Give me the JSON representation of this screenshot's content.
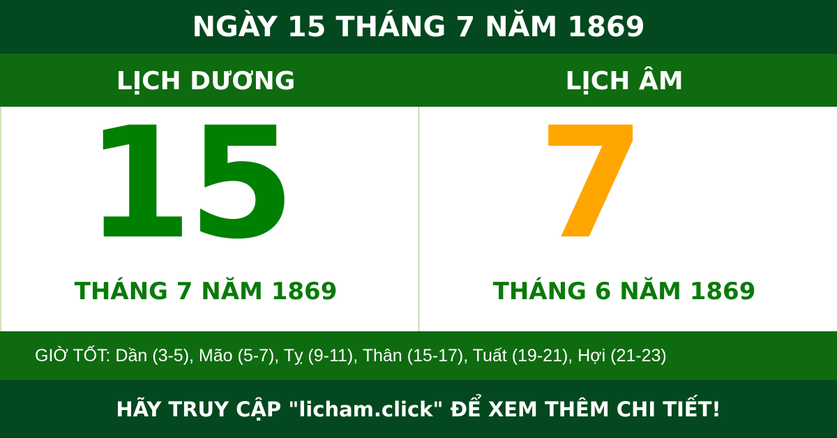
{
  "title": "NGÀY 15 THÁNG 7 NĂM 1869",
  "solar": {
    "label": "LỊCH DƯƠNG",
    "day": "15",
    "month_year": "THÁNG 7 NĂM 1869"
  },
  "lunar": {
    "label": "LỊCH ÂM",
    "day": "7",
    "month_year": "THÁNG 6 NĂM 1869"
  },
  "good_hours": "GIỜ TỐT: Dần (3-5), Mão (5-7), Tỵ (9-11), Thân (15-17), Tuất (19-21), Hợi (21-23)",
  "footer": "HÃY TRUY CẬP \"licham.click\" ĐỂ XEM THÊM CHI TIẾT!",
  "colors": {
    "dark_green": "#03481f",
    "green": "#0f6b10",
    "solar_day": "#008000",
    "lunar_day": "#ffa500"
  }
}
